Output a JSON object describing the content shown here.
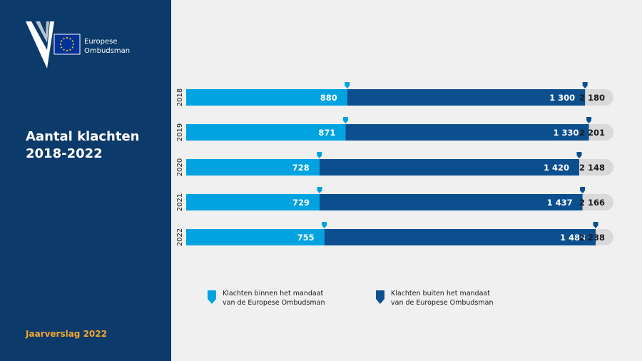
{
  "brand": {
    "line1": "Europese",
    "line2": "Ombudsman"
  },
  "title": {
    "line1": "Aantal klachten",
    "line2": "2018-2022"
  },
  "footer": "Jaarverslag 2022",
  "legend": {
    "inside": {
      "line1": "Klachten binnen het mandaat",
      "line2": "van de Europese Ombudsman"
    },
    "outside": {
      "line1": "Klachten buiten het mandaat",
      "line2": "van de Europese Ombudsman"
    }
  },
  "colors": {
    "inside": "#00a3e0",
    "outside": "#0b4f8f",
    "total": "#d9d9d9",
    "sidebar": "#0c3a6a",
    "accent": "#f2a52e"
  },
  "chart_data": {
    "type": "bar",
    "orientation": "horizontal",
    "stacked": true,
    "categories": [
      "2018",
      "2019",
      "2020",
      "2021",
      "2022"
    ],
    "series": [
      {
        "name": "Klachten binnen het mandaat van de Europese Ombudsman",
        "values": [
          880,
          871,
          728,
          729,
          755
        ]
      },
      {
        "name": "Klachten buiten het mandaat van de Europese Ombudsman",
        "values": [
          1300,
          1330,
          1420,
          1437,
          1483
        ]
      }
    ],
    "value_labels": {
      "inside": [
        "880",
        "871",
        "728",
        "729",
        "755"
      ],
      "outside": [
        "1 300",
        "1 330",
        "1 420",
        "1 437",
        "1 483"
      ]
    },
    "totals": [
      2180,
      2201,
      2148,
      2166,
      2238
    ],
    "total_labels": [
      "2 180",
      "2 201",
      "2 148",
      "2 166",
      "2 238"
    ],
    "legend": "bottom"
  }
}
